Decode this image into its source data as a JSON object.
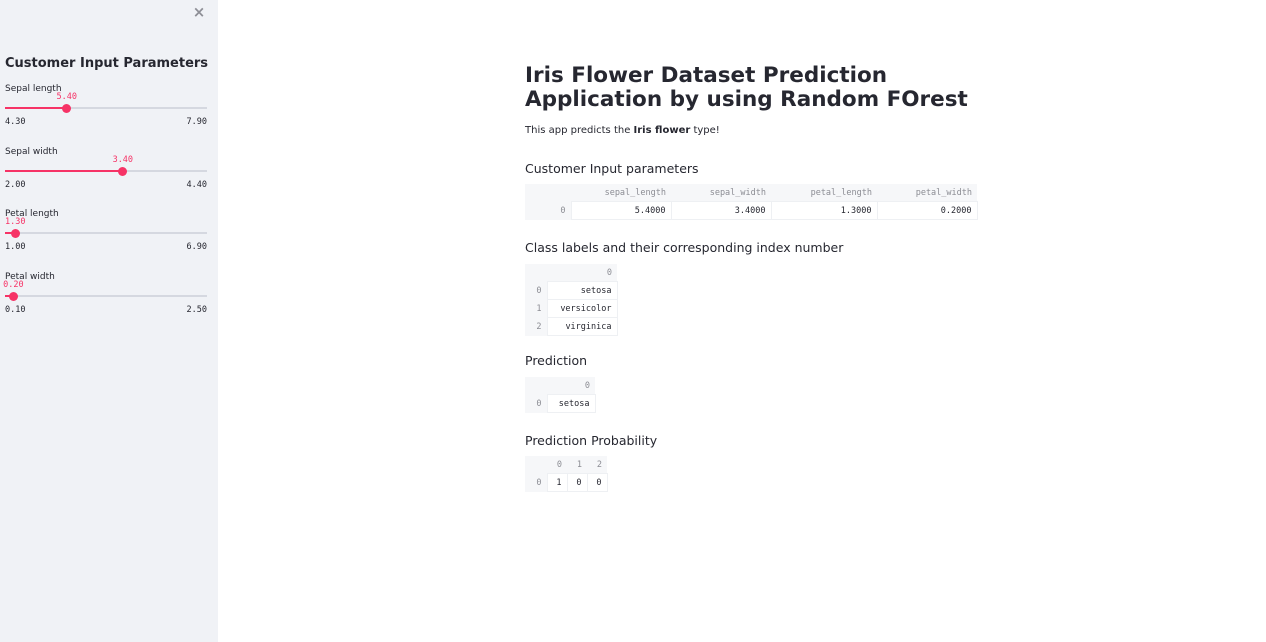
{
  "sidebar": {
    "close_icon": "×",
    "title": "Customer Input Parameters",
    "sliders": [
      {
        "label": "Sepal length",
        "value": "5.40",
        "min": "4.30",
        "max": "7.90",
        "fraction": 0.3056
      },
      {
        "label": "Sepal width",
        "value": "3.40",
        "min": "2.00",
        "max": "4.40",
        "fraction": 0.5833
      },
      {
        "label": "Petal length",
        "value": "1.30",
        "min": "1.00",
        "max": "6.90",
        "fraction": 0.0508
      },
      {
        "label": "Petal width",
        "value": "0.20",
        "min": "0.10",
        "max": "2.50",
        "fraction": 0.0417
      }
    ]
  },
  "main": {
    "title": "Iris Flower Dataset Prediction Application by using Random FOrest",
    "intro_prefix": "This app predicts the ",
    "intro_bold": "Iris flower",
    "intro_suffix": " type!",
    "input_params": {
      "heading": "Customer Input parameters",
      "columns": [
        "sepal_length",
        "sepal_width",
        "petal_length",
        "petal_width"
      ],
      "rows": [
        {
          "index": "0",
          "cells": [
            "5.4000",
            "3.4000",
            "1.3000",
            "0.2000"
          ]
        }
      ]
    },
    "class_labels": {
      "heading": "Class labels and their corresponding index number",
      "columns": [
        "0"
      ],
      "rows": [
        {
          "index": "0",
          "cells": [
            "setosa"
          ]
        },
        {
          "index": "1",
          "cells": [
            "versicolor"
          ]
        },
        {
          "index": "2",
          "cells": [
            "virginica"
          ]
        }
      ]
    },
    "prediction": {
      "heading": "Prediction",
      "columns": [
        "0"
      ],
      "rows": [
        {
          "index": "0",
          "cells": [
            "setosa"
          ]
        }
      ]
    },
    "probability": {
      "heading": "Prediction Probability",
      "columns": [
        "0",
        "1",
        "2"
      ],
      "rows": [
        {
          "index": "0",
          "cells": [
            "1",
            "0",
            "0"
          ]
        }
      ]
    }
  },
  "colors": {
    "accent": "#f63366",
    "sidebar_bg": "#f0f2f6",
    "text": "#262730"
  }
}
